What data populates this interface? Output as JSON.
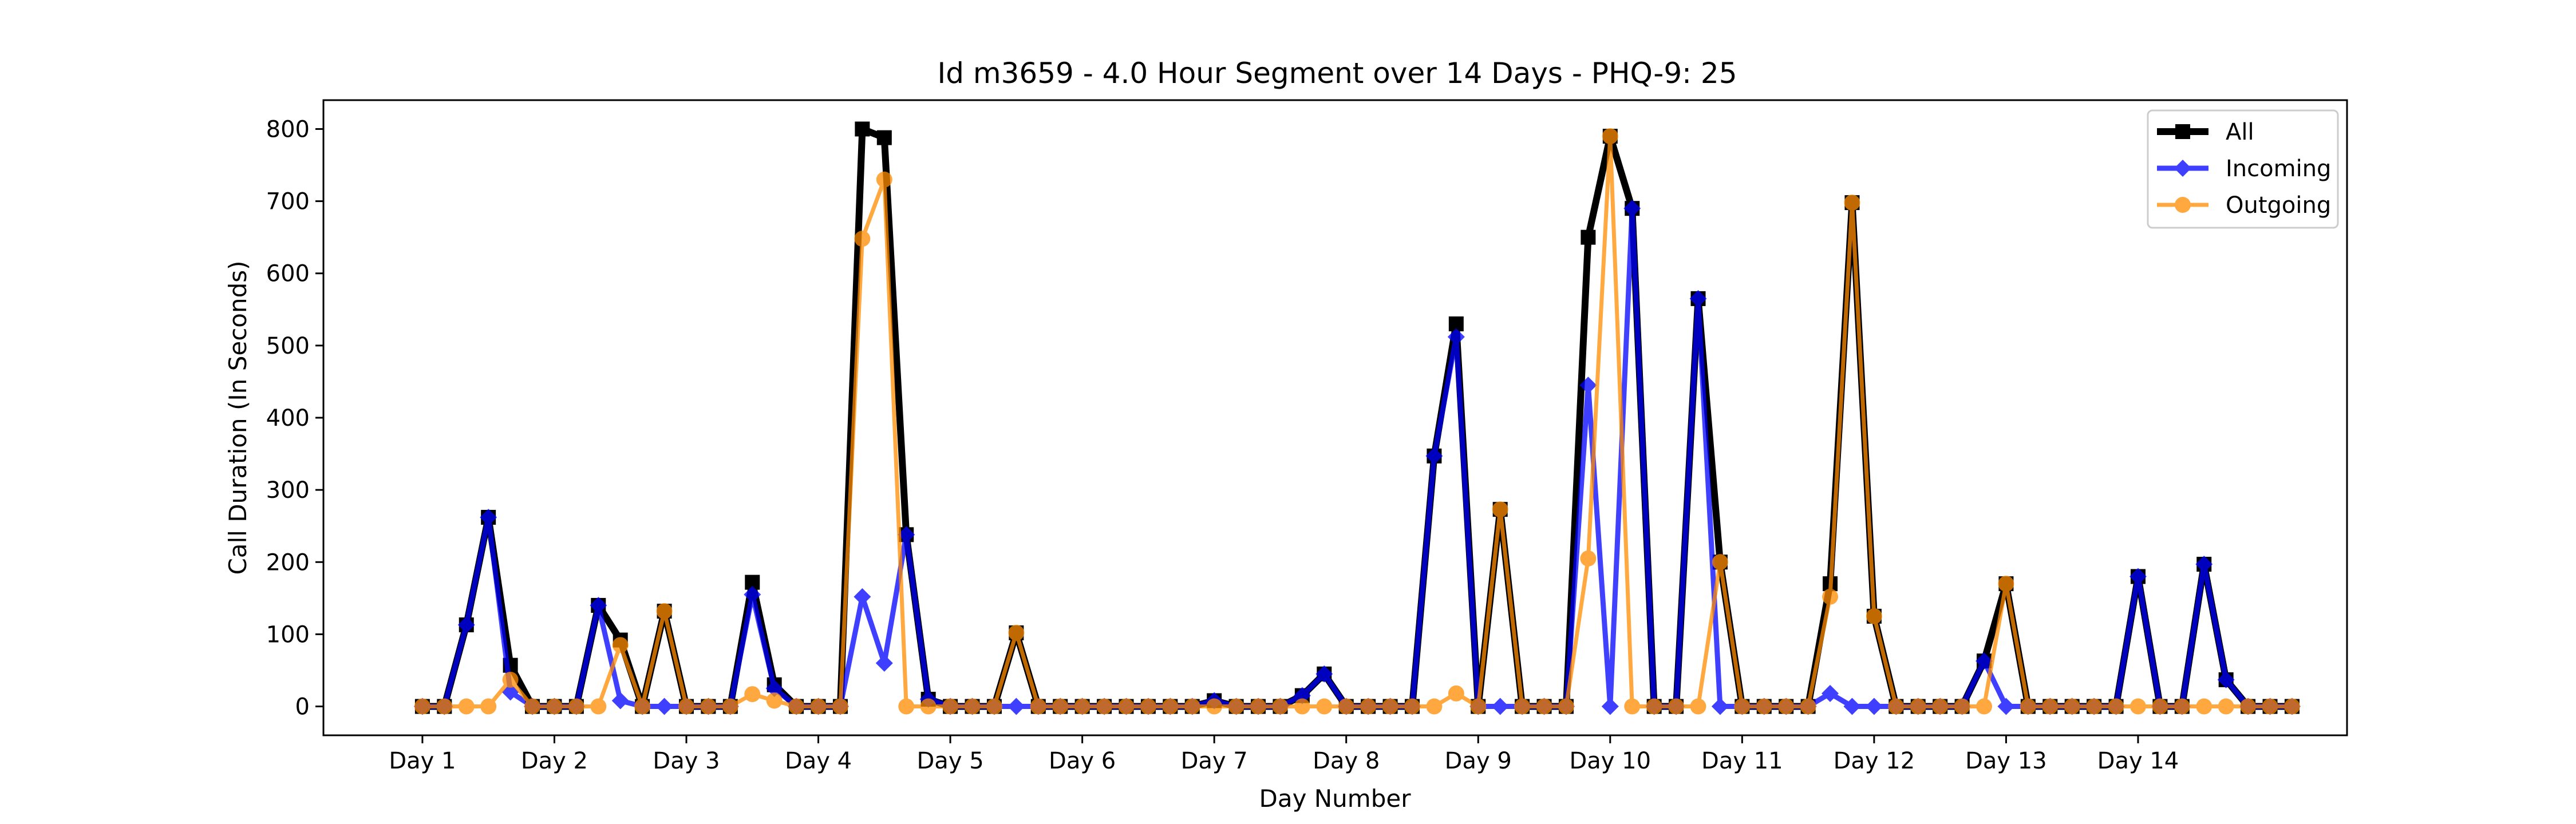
{
  "chart_data": {
    "type": "line",
    "title": "Id m3659 - 4.0 Hour Segment over 14 Days - PHQ-9: 25",
    "xlabel": "Day Number",
    "ylabel": "Call Duration (In Seconds)",
    "ylim": [
      -40,
      840
    ],
    "xlim": [
      -4.5,
      87.5
    ],
    "yticks": [
      0,
      100,
      200,
      300,
      400,
      500,
      600,
      700,
      800
    ],
    "xtick_positions": [
      0,
      6,
      12,
      18,
      24,
      30,
      36,
      42,
      48,
      54,
      60,
      66,
      72,
      78
    ],
    "xtick_labels": [
      "Day 1",
      "Day 2",
      "Day 3",
      "Day 4",
      "Day 5",
      "Day 6",
      "Day 7",
      "Day 8",
      "Day 9",
      "Day 10",
      "Day 11",
      "Day 12",
      "Day 13",
      "Day 14"
    ],
    "legend_position": "top-right",
    "grid": false,
    "series": [
      {
        "name": "All",
        "color": "#000000",
        "marker": "square",
        "values": [
          0,
          0,
          113,
          262,
          57,
          0,
          0,
          0,
          140,
          92,
          0,
          132,
          0,
          0,
          0,
          172,
          30,
          0,
          0,
          0,
          800,
          788,
          238,
          10,
          0,
          0,
          0,
          102,
          0,
          0,
          0,
          0,
          0,
          0,
          0,
          0,
          8,
          0,
          0,
          0,
          15,
          45,
          0,
          0,
          0,
          0,
          347,
          530,
          0,
          273,
          0,
          0,
          0,
          650,
          790,
          690,
          0,
          0,
          565,
          200,
          0,
          0,
          0,
          0,
          170,
          698,
          125,
          0,
          0,
          0,
          0,
          63,
          170,
          0,
          0,
          0,
          0,
          0,
          180,
          0,
          0,
          197,
          37,
          0,
          0,
          0
        ]
      },
      {
        "name": "Incoming",
        "color": "#0000ff",
        "marker": "diamond",
        "values": [
          0,
          0,
          113,
          262,
          20,
          0,
          0,
          0,
          140,
          8,
          0,
          0,
          0,
          0,
          0,
          155,
          25,
          0,
          0,
          0,
          152,
          60,
          238,
          10,
          0,
          0,
          0,
          0,
          0,
          0,
          0,
          0,
          0,
          0,
          0,
          0,
          8,
          0,
          0,
          0,
          15,
          45,
          0,
          0,
          0,
          0,
          347,
          512,
          0,
          0,
          0,
          0,
          0,
          445,
          0,
          690,
          0,
          0,
          565,
          0,
          0,
          0,
          0,
          0,
          18,
          0,
          0,
          0,
          0,
          0,
          0,
          63,
          0,
          0,
          0,
          0,
          0,
          0,
          180,
          0,
          0,
          197,
          37,
          0,
          0,
          0
        ]
      },
      {
        "name": "Outgoing",
        "color": "#ff8c00",
        "marker": "circle",
        "values": [
          0,
          0,
          0,
          0,
          37,
          0,
          0,
          0,
          0,
          85,
          0,
          132,
          0,
          0,
          0,
          17,
          8,
          0,
          0,
          0,
          648,
          730,
          0,
          0,
          0,
          0,
          0,
          102,
          0,
          0,
          0,
          0,
          0,
          0,
          0,
          0,
          0,
          0,
          0,
          0,
          0,
          0,
          0,
          0,
          0,
          0,
          0,
          18,
          0,
          273,
          0,
          0,
          0,
          205,
          790,
          0,
          0,
          0,
          0,
          200,
          0,
          0,
          0,
          0,
          152,
          698,
          125,
          0,
          0,
          0,
          0,
          0,
          170,
          0,
          0,
          0,
          0,
          0,
          0,
          0,
          0,
          0,
          0,
          0,
          0,
          0
        ]
      }
    ]
  }
}
